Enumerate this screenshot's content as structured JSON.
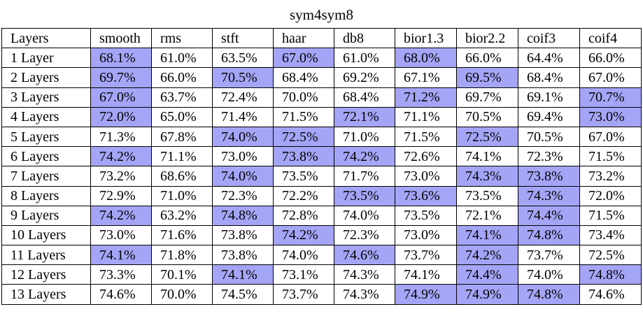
{
  "chart_data": {
    "type": "table",
    "title": "sym4sym8",
    "columns": [
      "Layers",
      "smooth",
      "rms",
      "stft",
      "haar",
      "db8",
      "bior1.3",
      "bior2.2",
      "coif3",
      "coif4"
    ],
    "rows": [
      {
        "label": "1 Layer",
        "values": [
          "68.1%",
          "61.0%",
          "63.5%",
          "67.0%",
          "61.0%",
          "68.0%",
          "66.0%",
          "64.4%",
          "66.0%"
        ],
        "highlight": [
          true,
          false,
          false,
          true,
          false,
          true,
          false,
          false,
          false
        ]
      },
      {
        "label": "2 Layers",
        "values": [
          "69.7%",
          "66.0%",
          "70.5%",
          "68.4%",
          "69.2%",
          "67.1%",
          "69.5%",
          "68.4%",
          "67.0%"
        ],
        "highlight": [
          true,
          false,
          true,
          false,
          false,
          false,
          true,
          false,
          false
        ]
      },
      {
        "label": "3 Layers",
        "values": [
          "67.0%",
          "63.7%",
          "72.4%",
          "70.0%",
          "68.4%",
          "71.2%",
          "69.7%",
          "69.1%",
          "70.7%"
        ],
        "highlight": [
          true,
          false,
          false,
          false,
          false,
          true,
          false,
          false,
          true
        ]
      },
      {
        "label": "4 Layers",
        "values": [
          "72.0%",
          "65.0%",
          "71.4%",
          "71.5%",
          "72.1%",
          "71.1%",
          "70.5%",
          "69.4%",
          "73.0%"
        ],
        "highlight": [
          true,
          false,
          false,
          false,
          true,
          false,
          false,
          false,
          true
        ]
      },
      {
        "label": "5 Layers",
        "values": [
          "71.3%",
          "67.8%",
          "74.0%",
          "72.5%",
          "71.0%",
          "71.5%",
          "72.5%",
          "70.5%",
          "67.0%"
        ],
        "highlight": [
          false,
          false,
          true,
          true,
          false,
          false,
          true,
          false,
          false
        ]
      },
      {
        "label": "6 Layers",
        "values": [
          "74.2%",
          "71.1%",
          "73.0%",
          "73.8%",
          "74.2%",
          "72.6%",
          "74.1%",
          "72.3%",
          "71.5%"
        ],
        "highlight": [
          true,
          false,
          false,
          true,
          true,
          false,
          false,
          false,
          false
        ]
      },
      {
        "label": "7 Layers",
        "values": [
          "73.2%",
          "68.6%",
          "74.0%",
          "73.5%",
          "71.7%",
          "73.0%",
          "74.3%",
          "73.8%",
          "73.2%"
        ],
        "highlight": [
          false,
          false,
          true,
          false,
          false,
          false,
          true,
          true,
          false
        ]
      },
      {
        "label": "8 Layers",
        "values": [
          "72.9%",
          "71.0%",
          "72.3%",
          "72.2%",
          "73.5%",
          "73.6%",
          "73.5%",
          "74.3%",
          "72.0%"
        ],
        "highlight": [
          false,
          false,
          false,
          false,
          true,
          true,
          false,
          true,
          false
        ]
      },
      {
        "label": "9 Layers",
        "values": [
          "74.2%",
          "63.2%",
          "74.8%",
          "72.8%",
          "74.0%",
          "73.5%",
          "72.1%",
          "74.4%",
          "71.5%"
        ],
        "highlight": [
          true,
          false,
          true,
          false,
          false,
          false,
          false,
          true,
          false
        ]
      },
      {
        "label": "10 Layers",
        "values": [
          "73.0%",
          "71.6%",
          "73.8%",
          "74.2%",
          "72.3%",
          "73.0%",
          "74.1%",
          "74.8%",
          "73.4%"
        ],
        "highlight": [
          false,
          false,
          false,
          true,
          false,
          false,
          true,
          true,
          false
        ]
      },
      {
        "label": "11 Layers",
        "values": [
          "74.1%",
          "71.8%",
          "73.8%",
          "74.0%",
          "74.6%",
          "73.7%",
          "74.2%",
          "73.7%",
          "72.5%"
        ],
        "highlight": [
          true,
          false,
          false,
          false,
          true,
          false,
          true,
          false,
          false
        ]
      },
      {
        "label": "12 Layers",
        "values": [
          "73.3%",
          "70.1%",
          "74.1%",
          "73.1%",
          "74.3%",
          "74.1%",
          "74.4%",
          "74.0%",
          "74.8%"
        ],
        "highlight": [
          false,
          false,
          true,
          false,
          false,
          false,
          true,
          false,
          true
        ]
      },
      {
        "label": "13 Layers",
        "values": [
          "74.6%",
          "70.0%",
          "74.5%",
          "73.7%",
          "74.3%",
          "74.9%",
          "74.9%",
          "74.8%",
          "74.6%"
        ],
        "highlight": [
          false,
          false,
          false,
          false,
          false,
          true,
          true,
          true,
          false
        ]
      }
    ],
    "highlight_color": "#a5a5f7",
    "grid": true
  }
}
